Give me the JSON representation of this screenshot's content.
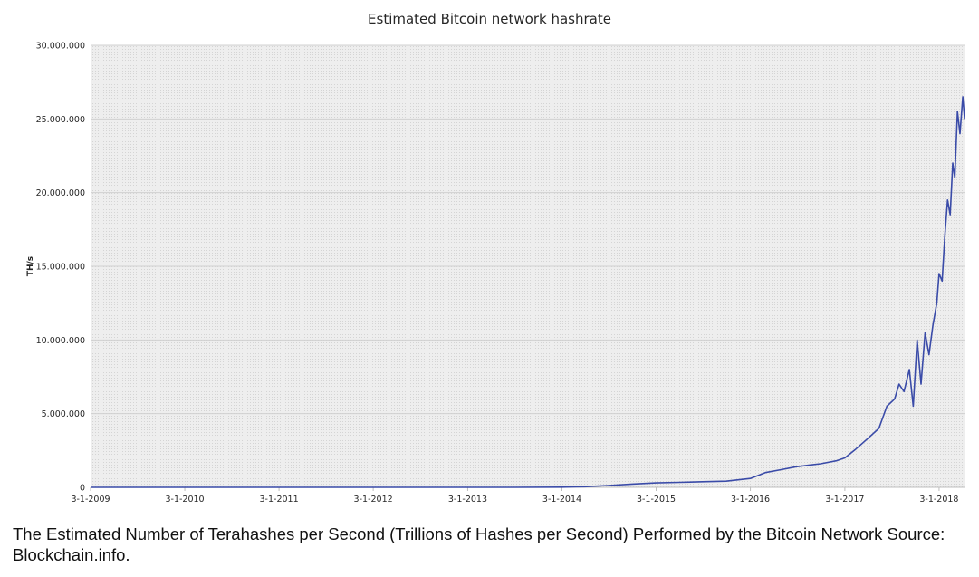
{
  "chart_data": {
    "type": "line",
    "title": "Estimated Bitcoin network hashrate",
    "xlabel": "",
    "ylabel": "TH/s",
    "ylim": [
      0,
      30000000
    ],
    "yticks": [
      0,
      5000000,
      10000000,
      15000000,
      20000000,
      25000000,
      30000000
    ],
    "ytick_labels": [
      "0",
      "5.000.000",
      "10.000.000",
      "15.000.000",
      "20.000.000",
      "25.000.000",
      "30.000.000"
    ],
    "xlim": [
      "2009-01-03",
      "2018-04-15"
    ],
    "xtick_dates": [
      "2009-01-03",
      "2010-01-03",
      "2011-01-03",
      "2012-01-03",
      "2013-01-03",
      "2014-01-03",
      "2015-01-03",
      "2016-01-03",
      "2017-01-03",
      "2018-01-03"
    ],
    "xtick_labels": [
      "3-1-2009",
      "3-1-2010",
      "3-1-2011",
      "3-1-2012",
      "3-1-2013",
      "3-1-2014",
      "3-1-2015",
      "3-1-2016",
      "3-1-2017",
      "3-1-2018"
    ],
    "grid": true,
    "series": [
      {
        "color": "#3a4ba8",
        "x": [
          "2009-01-03",
          "2010-01-03",
          "2011-01-03",
          "2012-01-03",
          "2013-01-03",
          "2013-07-01",
          "2014-01-03",
          "2014-04-01",
          "2014-07-01",
          "2014-10-01",
          "2015-01-03",
          "2015-04-01",
          "2015-07-01",
          "2015-10-01",
          "2016-01-03",
          "2016-03-01",
          "2016-05-01",
          "2016-07-01",
          "2016-08-15",
          "2016-10-01",
          "2016-12-01",
          "2017-01-03",
          "2017-02-15",
          "2017-04-01",
          "2017-05-15",
          "2017-06-15",
          "2017-07-15",
          "2017-08-01",
          "2017-08-20",
          "2017-09-10",
          "2017-09-25",
          "2017-10-10",
          "2017-10-25",
          "2017-11-10",
          "2017-11-25",
          "2017-12-10",
          "2017-12-25",
          "2018-01-03",
          "2018-01-15",
          "2018-01-25",
          "2018-02-05",
          "2018-02-15",
          "2018-02-25",
          "2018-03-05",
          "2018-03-15",
          "2018-03-25",
          "2018-04-05",
          "2018-04-12"
        ],
        "values": [
          0,
          0,
          0,
          0,
          0,
          1000,
          10000,
          40000,
          120000,
          220000,
          300000,
          340000,
          380000,
          420000,
          600000,
          1000000,
          1200000,
          1400000,
          1500000,
          1600000,
          1800000,
          2000000,
          2600000,
          3300000,
          4000000,
          5500000,
          6000000,
          7000000,
          6500000,
          8000000,
          5500000,
          10000000,
          7000000,
          10500000,
          9000000,
          11000000,
          12500000,
          14500000,
          14000000,
          17000000,
          19500000,
          18500000,
          22000000,
          21000000,
          25500000,
          24000000,
          26500000,
          25000000
        ]
      }
    ]
  },
  "caption": "The Estimated Number of Terahashes per Second (Trillions of Hashes per Second) Performed by the Bitcoin Network Source: Blockchain.info."
}
